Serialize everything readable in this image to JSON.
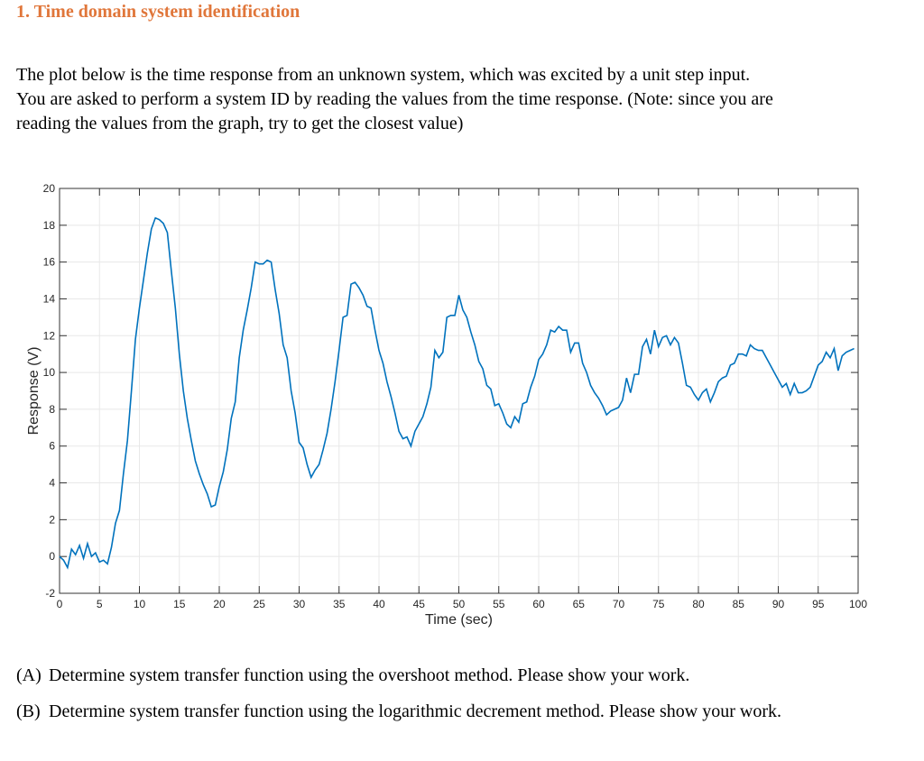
{
  "header": {
    "title": "1. Time domain system identification"
  },
  "intro": {
    "lines": [
      "The plot below is the time response from an unknown system, which was excited by a unit step input.",
      "You are asked to perform a system ID by reading the values from the time response. (Note: since you are",
      "reading the values from the graph, try to get the closest value)"
    ]
  },
  "chart_data": {
    "type": "line",
    "xlabel": "Time (sec)",
    "ylabel": "Response (V)",
    "color": "#0072bd",
    "grid": true,
    "xlim": [
      0,
      100
    ],
    "ylim": [
      -2,
      20
    ],
    "xticks": [
      0,
      5,
      10,
      15,
      20,
      25,
      30,
      35,
      40,
      45,
      50,
      55,
      60,
      65,
      70,
      75,
      80,
      85,
      90,
      95,
      100
    ],
    "yticks": [
      -2,
      0,
      2,
      4,
      6,
      8,
      10,
      12,
      14,
      16,
      18,
      20
    ],
    "x": [
      0,
      0.5,
      1,
      1.5,
      2,
      2.5,
      3,
      3.5,
      4,
      4.5,
      5,
      5.5,
      6,
      6.5,
      7,
      7.5,
      8,
      8.5,
      9,
      9.5,
      10,
      10.5,
      11,
      11.5,
      12,
      12.5,
      13,
      13.5,
      14,
      14.5,
      15,
      15.5,
      16,
      16.5,
      17,
      17.5,
      18,
      18.5,
      19,
      19.5,
      20,
      20.5,
      21,
      21.5,
      22,
      22.5,
      23,
      23.5,
      24,
      24.5,
      25,
      25.5,
      26,
      26.5,
      27,
      27.5,
      28,
      28.5,
      29,
      29.5,
      30,
      30.5,
      31,
      31.5,
      32,
      32.5,
      33,
      33.5,
      34,
      34.5,
      35,
      35.5,
      36,
      36.5,
      37,
      37.5,
      38,
      38.5,
      39,
      39.5,
      40,
      40.5,
      41,
      41.5,
      42,
      42.5,
      43,
      43.5,
      44,
      44.5,
      45,
      45.5,
      46,
      46.5,
      47,
      47.5,
      48,
      48.5,
      49,
      49.5,
      50,
      50.5,
      51,
      51.5,
      52,
      52.5,
      53,
      53.5,
      54,
      54.5,
      55,
      55.5,
      56,
      56.5,
      57,
      57.5,
      58,
      58.5,
      59,
      59.5,
      60,
      60.5,
      61,
      61.5,
      62,
      62.5,
      63,
      63.5,
      64,
      64.5,
      65,
      65.5,
      66,
      66.5,
      67,
      67.5,
      68,
      68.5,
      69,
      69.5,
      70,
      70.5,
      71,
      71.5,
      72,
      72.5,
      73,
      73.5,
      74,
      74.5,
      75,
      75.5,
      76,
      76.5,
      77,
      77.5,
      78,
      78.5,
      79,
      79.5,
      80,
      80.5,
      81,
      81.5,
      82,
      82.5,
      83,
      83.5,
      84,
      84.5,
      85,
      85.5,
      86,
      86.5,
      87,
      87.5,
      88,
      88.5,
      89,
      89.5,
      90,
      90.5,
      91,
      91.5,
      92,
      92.5,
      93,
      93.5,
      94,
      94.5,
      95,
      95.5,
      96,
      96.5,
      97,
      97.5,
      98,
      98.5,
      99,
      99.5
    ],
    "values": [
      0,
      -0.2,
      -0.6,
      0.4,
      0.1,
      0.6,
      -0.1,
      0.7,
      0,
      0.2,
      -0.3,
      -0.2,
      -0.4,
      0.5,
      1.8,
      2.5,
      4.5,
      6.3,
      9,
      11.8,
      13.5,
      15,
      16.5,
      17.8,
      18.4,
      18.3,
      18.1,
      17.6,
      15.5,
      13.5,
      11,
      9,
      7.5,
      6.3,
      5.2,
      4.5,
      3.9,
      3.4,
      2.7,
      2.8,
      3.8,
      4.6,
      5.8,
      7.5,
      8.4,
      10.8,
      12.3,
      13.4,
      14.6,
      16,
      15.9,
      15.9,
      16.1,
      16,
      14.5,
      13.2,
      11.5,
      10.8,
      9,
      7.8,
      6.2,
      5.9,
      5,
      4.3,
      4.7,
      5,
      5.8,
      6.7,
      8,
      9.5,
      11.2,
      13,
      13.1,
      14.8,
      14.9,
      14.6,
      14.2,
      13.6,
      13.5,
      12.3,
      11.2,
      10.5,
      9.5,
      8.7,
      7.8,
      6.8,
      6.4,
      6.5,
      6,
      6.8,
      7.2,
      7.6,
      8.3,
      9.2,
      11.2,
      10.8,
      11.1,
      13,
      13.1,
      13.1,
      14.2,
      13.4,
      13,
      12.2,
      11.5,
      10.6,
      10.2,
      9.3,
      9.1,
      8.2,
      8.3,
      7.8,
      7.2,
      7,
      7.6,
      7.3,
      8.3,
      8.4,
      9.2,
      9.8,
      10.7,
      11,
      11.5,
      12.3,
      12.2,
      12.5,
      12.3,
      12.3,
      11.1,
      11.6,
      11.6,
      10.5,
      10,
      9.3,
      8.9,
      8.6,
      8.2,
      7.7,
      7.9,
      8,
      8.1,
      8.5,
      9.7,
      8.9,
      9.9,
      9.9,
      11.4,
      11.8,
      11,
      12.3,
      11.4,
      11.9,
      12,
      11.5,
      11.9,
      11.6,
      10.5,
      9.3,
      9.2,
      8.8,
      8.5,
      8.9,
      9.1,
      8.4,
      8.9,
      9.5,
      9.7,
      9.8,
      10.4,
      10.5,
      11,
      11,
      10.9,
      11.5,
      11.3,
      11.2,
      11.2,
      10.8,
      10.4,
      10,
      9.6,
      9.2,
      9.4,
      8.8,
      9.4,
      8.9,
      8.9,
      9,
      9.2,
      9.8,
      10.4,
      10.6,
      11.1,
      10.8,
      11.3,
      10.1,
      10.9,
      11.1,
      11.2,
      11.3
    ]
  },
  "questions": [
    {
      "label": "(A)",
      "text": "Determine system transfer function using the overshoot method. Please show your work."
    },
    {
      "label": "(B)",
      "text": "Determine system transfer function using the logarithmic decrement method. Please show your work."
    }
  ]
}
